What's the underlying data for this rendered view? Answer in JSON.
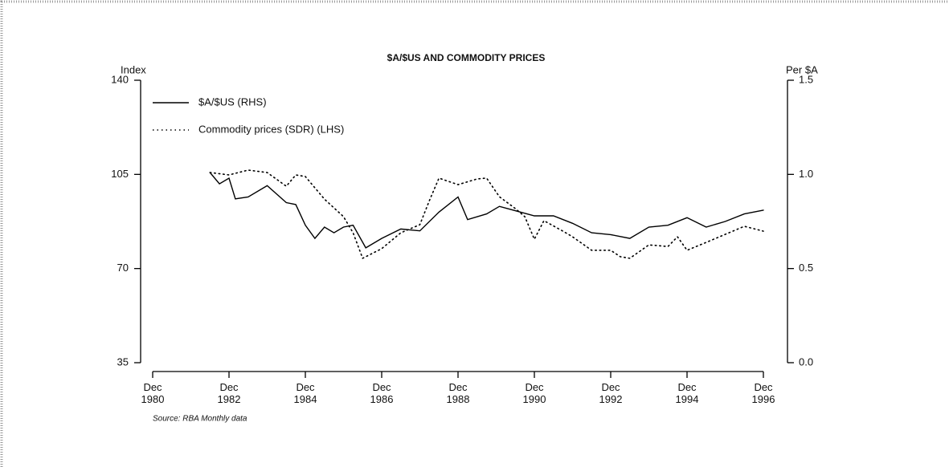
{
  "chart_data": {
    "type": "line",
    "title": "$A/$US AND COMMODITY PRICES",
    "ylabel": "Index",
    "y2label": "Per $A",
    "source": "Source: RBA Monthly data",
    "xlim": [
      "1980-12",
      "1996-12"
    ],
    "xticks": [
      {
        "value": "1980-12",
        "label": "Dec 1980"
      },
      {
        "value": "1982-12",
        "label": "Dec 1982"
      },
      {
        "value": "1984-12",
        "label": "Dec 1984"
      },
      {
        "value": "1986-12",
        "label": "Dec 1986"
      },
      {
        "value": "1988-12",
        "label": "Dec 1988"
      },
      {
        "value": "1990-12",
        "label": "Dec 1990"
      },
      {
        "value": "1992-12",
        "label": "Dec 1992"
      },
      {
        "value": "1994-12",
        "label": "Dec 1994"
      },
      {
        "value": "1996-12",
        "label": "Dec 1996"
      }
    ],
    "ylim": [
      35,
      140
    ],
    "yticks": [
      35,
      70,
      105,
      140
    ],
    "y2lim": [
      0,
      1.5
    ],
    "y2ticks": [
      {
        "value": 0,
        "label": "0.0"
      },
      {
        "value": 0.5,
        "label": "0.5"
      },
      {
        "value": 1,
        "label": "1.0"
      },
      {
        "value": 1.5,
        "label": "1.5"
      }
    ],
    "series": [
      {
        "name": "$A/$US (RHS)",
        "color": "#000000",
        "style": "solid",
        "axis": "y2",
        "x": [
          "1982-06",
          "1982-09",
          "1982-12",
          "1983-02",
          "1983-06",
          "1983-12",
          "1984-06",
          "1984-09",
          "1984-12",
          "1985-03",
          "1985-06",
          "1985-09",
          "1985-12",
          "1986-03",
          "1986-07",
          "1986-12",
          "1987-06",
          "1987-12",
          "1988-06",
          "1988-12",
          "1989-03",
          "1989-09",
          "1990-01",
          "1990-12",
          "1991-06",
          "1991-12",
          "1992-06",
          "1992-12",
          "1993-06",
          "1993-12",
          "1994-06",
          "1994-12",
          "1995-06",
          "1995-12",
          "1996-06",
          "1996-12"
        ],
        "values": [
          1.01,
          0.95,
          0.98,
          0.87,
          0.88,
          0.94,
          0.85,
          0.84,
          0.73,
          0.66,
          0.72,
          0.69,
          0.72,
          0.73,
          0.61,
          0.66,
          0.71,
          0.7,
          0.8,
          0.88,
          0.76,
          0.79,
          0.83,
          0.78,
          0.78,
          0.74,
          0.69,
          0.68,
          0.66,
          0.72,
          0.73,
          0.77,
          0.72,
          0.75,
          0.79,
          0.81
        ]
      },
      {
        "name": "Commodity prices (SDR) (LHS)",
        "color": "#000000",
        "style": "dotted",
        "x": [
          "1982-06",
          "1982-12",
          "1983-06",
          "1983-12",
          "1984-06",
          "1984-09",
          "1984-12",
          "1985-06",
          "1985-12",
          "1986-03",
          "1986-06",
          "1986-12",
          "1987-06",
          "1987-12",
          "1988-03",
          "1988-06",
          "1988-12",
          "1989-06",
          "1989-09",
          "1990-01",
          "1990-06",
          "1990-09",
          "1990-12",
          "1991-03",
          "1991-09",
          "1991-12",
          "1992-06",
          "1992-12",
          "1993-03",
          "1993-06",
          "1993-12",
          "1994-06",
          "1994-09",
          "1994-12",
          "1995-06",
          "1995-12",
          "1996-06",
          "1996-12"
        ],
        "values": [
          105.7,
          104.8,
          106.6,
          105.7,
          100.6,
          104.8,
          104.2,
          95.8,
          89.3,
          83.3,
          73.8,
          77.4,
          83.3,
          86.3,
          95.3,
          103.6,
          101.2,
          103.3,
          103.6,
          96.7,
          92.3,
          89.3,
          80.9,
          87.8,
          83.9,
          81.8,
          76.8,
          76.8,
          74.4,
          73.8,
          78.8,
          78.2,
          81.8,
          76.8,
          79.7,
          82.7,
          85.7,
          83.9
        ]
      }
    ]
  }
}
